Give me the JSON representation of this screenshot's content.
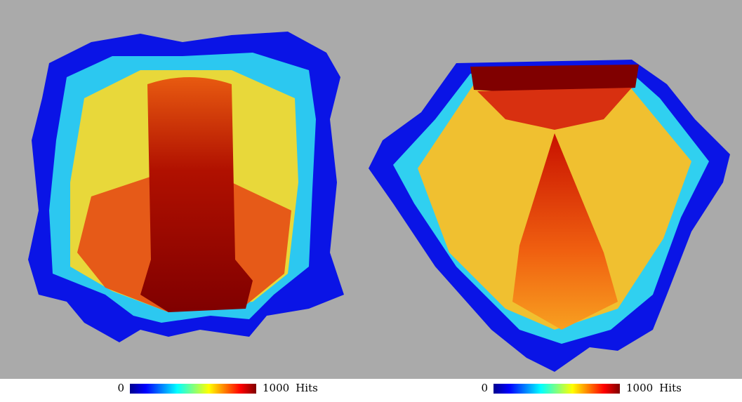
{
  "panels": [
    {
      "colorbar": {
        "min": 0,
        "max": 1000,
        "unit": "Hits"
      }
    },
    {
      "colorbar": {
        "min": 0,
        "max": 1000,
        "unit": "Hits"
      }
    }
  ]
}
